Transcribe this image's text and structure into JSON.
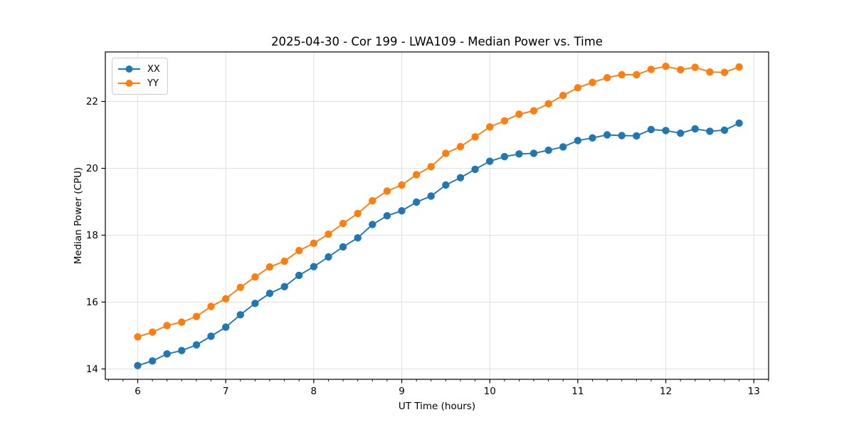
{
  "chart_data": {
    "type": "line",
    "title": "2025-04-30 - Cor 199 - LWA109 - Median Power vs. Time",
    "xlabel": "UT Time (hours)",
    "ylabel": "Median Power (CPU)",
    "xlim": [
      5.632,
      13.168
    ],
    "ylim": [
      13.69,
      23.48
    ],
    "xticks": [
      6,
      7,
      8,
      9,
      10,
      11,
      12,
      13
    ],
    "yticks": [
      14,
      16,
      18,
      20,
      22
    ],
    "x_minor_divisions_per_unit": 6,
    "grid": true,
    "grid_color": "#e0e0e0",
    "spine_color": "#000000",
    "background": "#ffffff",
    "legend_position": "upper-left",
    "x": [
      6.0,
      6.167,
      6.333,
      6.5,
      6.667,
      6.833,
      7.0,
      7.167,
      7.333,
      7.5,
      7.667,
      7.833,
      8.0,
      8.167,
      8.333,
      8.5,
      8.667,
      8.833,
      9.0,
      9.167,
      9.333,
      9.5,
      9.667,
      9.833,
      10.0,
      10.167,
      10.333,
      10.5,
      10.667,
      10.833,
      11.0,
      11.167,
      11.333,
      11.5,
      11.667,
      11.833,
      12.0,
      12.167,
      12.333,
      12.5,
      12.667,
      12.833
    ],
    "series": [
      {
        "name": "XX",
        "color": "#1f77b4",
        "marker": "circle",
        "values": [
          14.1,
          14.24,
          14.45,
          14.55,
          14.72,
          14.98,
          15.25,
          15.62,
          15.96,
          16.26,
          16.46,
          16.8,
          17.06,
          17.35,
          17.65,
          17.92,
          18.32,
          18.58,
          18.73,
          18.99,
          19.17,
          19.5,
          19.72,
          19.97,
          20.21,
          20.35,
          20.43,
          20.45,
          20.54,
          20.64,
          20.83,
          20.91,
          21.0,
          20.98,
          20.97,
          21.16,
          21.13,
          21.05,
          21.18,
          21.11,
          21.14,
          21.35
        ]
      },
      {
        "name": "YY",
        "color": "#ff7f0e",
        "marker": "circle",
        "values": [
          14.96,
          15.1,
          15.3,
          15.4,
          15.57,
          15.87,
          16.1,
          16.44,
          16.75,
          17.05,
          17.22,
          17.54,
          17.76,
          18.03,
          18.35,
          18.65,
          19.03,
          19.32,
          19.5,
          19.81,
          20.05,
          20.45,
          20.65,
          20.94,
          21.24,
          21.42,
          21.62,
          21.72,
          21.93,
          22.18,
          22.41,
          22.57,
          22.71,
          22.8,
          22.8,
          22.96,
          23.05,
          22.95,
          23.02,
          22.88,
          22.87,
          23.03
        ]
      }
    ]
  }
}
